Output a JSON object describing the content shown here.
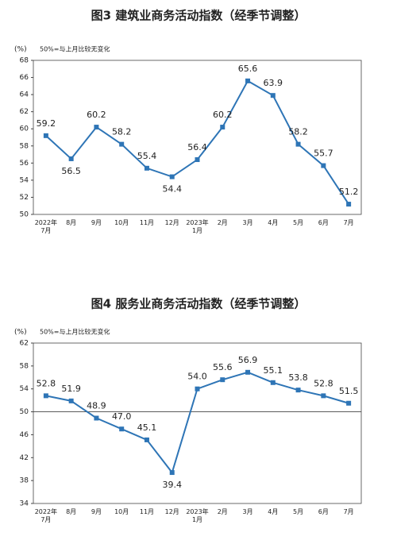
{
  "chart_data": [
    {
      "type": "line",
      "title": "图3  建筑业商务活动指数（经季节调整）",
      "unit": "(%)",
      "note": "50%=与上月比较无变化",
      "categories": [
        "2022年\n7月",
        "8月",
        "9月",
        "10月",
        "11月",
        "12月",
        "2023年\n1月",
        "2月",
        "3月",
        "4月",
        "5月",
        "6月",
        "7月"
      ],
      "values": [
        59.2,
        56.5,
        60.2,
        58.2,
        55.4,
        54.4,
        56.4,
        60.2,
        65.6,
        63.9,
        58.2,
        55.7,
        51.2
      ],
      "color": "#2e75b6",
      "ylim": [
        50,
        68
      ],
      "yticks": [
        50,
        52,
        54,
        56,
        58,
        60,
        62,
        64,
        66,
        68
      ]
    },
    {
      "type": "line",
      "title": "图4  服务业商务活动指数（经季节调整）",
      "unit": "(%)",
      "note": "50%=与上月比较无变化",
      "categories": [
        "2022年\n7月",
        "8月",
        "9月",
        "10月",
        "11月",
        "12月",
        "2023年\n1月",
        "2月",
        "3月",
        "4月",
        "5月",
        "6月",
        "7月"
      ],
      "values": [
        52.8,
        51.9,
        48.9,
        47.0,
        45.1,
        39.4,
        54.0,
        55.6,
        56.9,
        55.1,
        53.8,
        52.8,
        51.5
      ],
      "value_labels": [
        "52.8",
        "51.9",
        "48.9",
        "47.0",
        "45.1",
        "39.4",
        "54.0",
        "55.6",
        "56.9",
        "55.1",
        "53.8",
        "52.8",
        "51.5"
      ],
      "color": "#2e75b6",
      "ylim": [
        34,
        62
      ],
      "yticks": [
        34,
        38,
        42,
        46,
        50,
        54,
        58,
        62
      ],
      "baseline": 50
    }
  ]
}
